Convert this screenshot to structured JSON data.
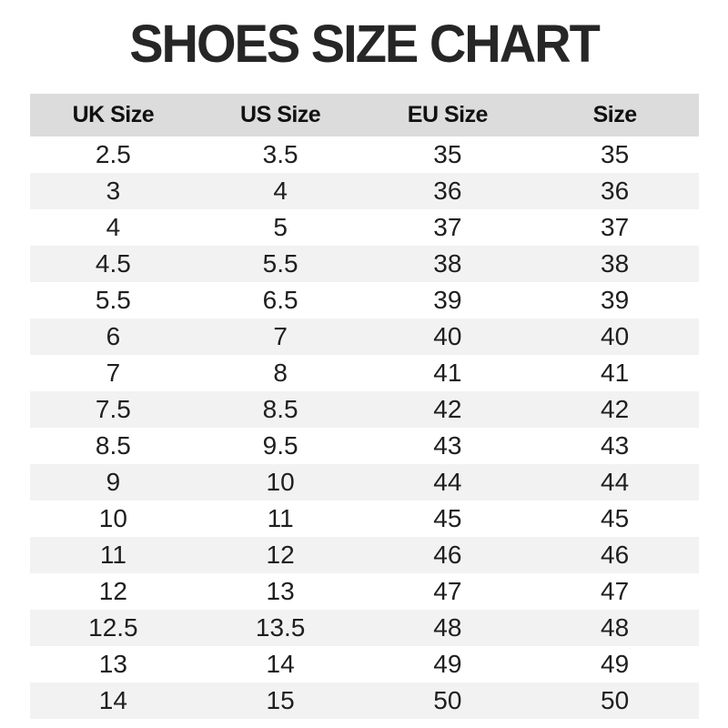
{
  "page_title": "SHOES SIZE CHART",
  "colors": {
    "header_bg": "#dcdcdc",
    "row_alt_bg": "#f2f2f2",
    "title_text": "#262626",
    "body_text": "#1f1f1f",
    "header_text": "#111111"
  },
  "chart_data": {
    "type": "table",
    "title": "SHOES SIZE CHART",
    "columns": [
      "UK Size",
      "US Size",
      "EU Size",
      "Size"
    ],
    "rows": [
      [
        "2.5",
        "3.5",
        "35",
        "35"
      ],
      [
        "3",
        "4",
        "36",
        "36"
      ],
      [
        "4",
        "5",
        "37",
        "37"
      ],
      [
        "4.5",
        "5.5",
        "38",
        "38"
      ],
      [
        "5.5",
        "6.5",
        "39",
        "39"
      ],
      [
        "6",
        "7",
        "40",
        "40"
      ],
      [
        "7",
        "8",
        "41",
        "41"
      ],
      [
        "7.5",
        "8.5",
        "42",
        "42"
      ],
      [
        "8.5",
        "9.5",
        "43",
        "43"
      ],
      [
        "9",
        "10",
        "44",
        "44"
      ],
      [
        "10",
        "11",
        "45",
        "45"
      ],
      [
        "11",
        "12",
        "46",
        "46"
      ],
      [
        "12",
        "13",
        "47",
        "47"
      ],
      [
        "12.5",
        "13.5",
        "48",
        "48"
      ],
      [
        "13",
        "14",
        "49",
        "49"
      ],
      [
        "14",
        "15",
        "50",
        "50"
      ]
    ],
    "layout": {
      "header_background": "#dcdcdc",
      "alternating_row_background": "#f2f2f2",
      "grid": false,
      "alignment": "center"
    }
  }
}
